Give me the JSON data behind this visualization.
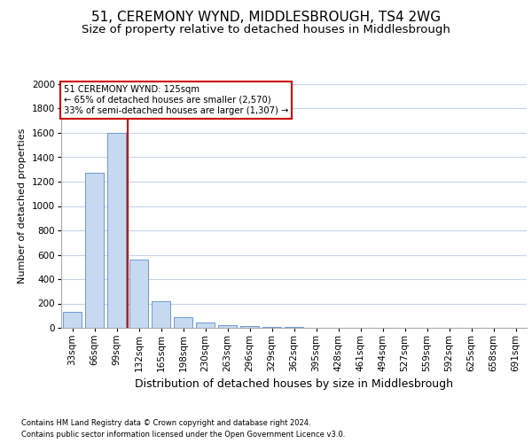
{
  "title": "51, CEREMONY WYND, MIDDLESBROUGH, TS4 2WG",
  "subtitle": "Size of property relative to detached houses in Middlesbrough",
  "xlabel": "Distribution of detached houses by size in Middlesbrough",
  "ylabel": "Number of detached properties",
  "bins": [
    "33sqm",
    "66sqm",
    "99sqm",
    "132sqm",
    "165sqm",
    "198sqm",
    "230sqm",
    "263sqm",
    "296sqm",
    "329sqm",
    "362sqm",
    "395sqm",
    "428sqm",
    "461sqm",
    "494sqm",
    "527sqm",
    "559sqm",
    "592sqm",
    "625sqm",
    "658sqm",
    "691sqm"
  ],
  "values": [
    130,
    1270,
    1600,
    560,
    215,
    90,
    45,
    25,
    15,
    10,
    5,
    0,
    0,
    0,
    0,
    0,
    0,
    0,
    0,
    0,
    0
  ],
  "bar_color": "#c6d9f0",
  "bar_edge_color": "#5b8cc8",
  "vline_color": "#cc0000",
  "vline_pos": 2.5,
  "ylim": [
    0,
    2000
  ],
  "yticks": [
    0,
    200,
    400,
    600,
    800,
    1000,
    1200,
    1400,
    1600,
    1800,
    2000
  ],
  "annotation_box_text": "51 CEREMONY WYND: 125sqm\n← 65% of detached houses are smaller (2,570)\n33% of semi-detached houses are larger (1,307) →",
  "annotation_box_color": "#cc0000",
  "background_color": "#ffffff",
  "grid_color": "#c8d4e8",
  "footer_line1": "Contains HM Land Registry data © Crown copyright and database right 2024.",
  "footer_line2": "Contains public sector information licensed under the Open Government Licence v3.0.",
  "title_fontsize": 11,
  "subtitle_fontsize": 9.5,
  "xlabel_fontsize": 9,
  "ylabel_fontsize": 8,
  "tick_fontsize": 7.5
}
